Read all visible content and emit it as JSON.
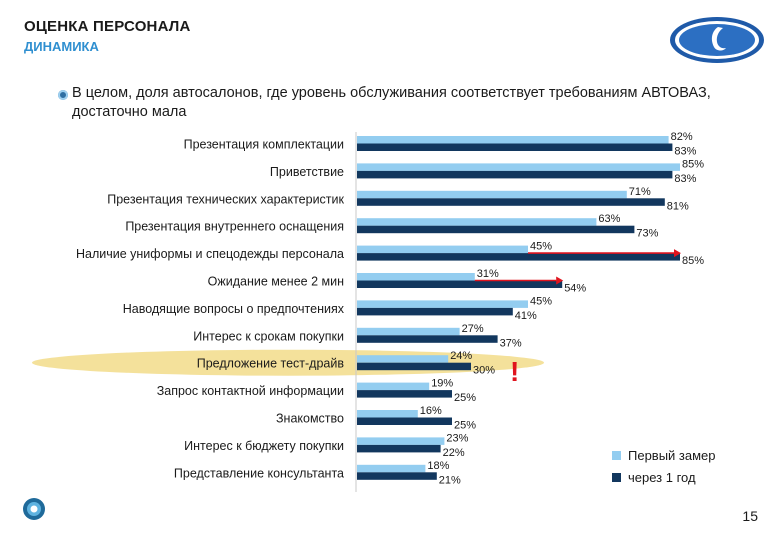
{
  "header": {
    "title": "ОЦЕНКА ПЕРСОНАЛА",
    "subtitle": "ДИНАМИКА"
  },
  "intro_text": "В целом, доля автосалонов, где уровень обслуживания соответствует требованиям АВТОВАЗ, достаточно мала",
  "page_number": "15",
  "colors": {
    "series1": "#93cdf0",
    "series2": "#12375e",
    "highlight": "#f2dc8a",
    "arrow": "#e0141e",
    "subtitle": "#2f8fd0"
  },
  "chart_data": {
    "type": "bar",
    "orientation": "horizontal",
    "title": "",
    "xlabel": "",
    "ylabel": "",
    "xlim": [
      0,
      100
    ],
    "categories": [
      "Презентация комплектации",
      "Приветствие",
      "Презентация технических характеристик",
      "Презентация внутреннего оснащения",
      "Наличие униформы и спецодежды персонала",
      "Ожидание  менее 2 мин",
      "Наводящие вопросы о предпочтениях",
      "Интерес к срокам покупки",
      "Предложение тест-драйв",
      "Запрос контактной информации",
      "Знакомство",
      "Интерес к бюджету покупки",
      "Представление консультанта"
    ],
    "series": [
      {
        "name": "Первый замер",
        "values": [
          82,
          85,
          71,
          63,
          45,
          31,
          45,
          27,
          24,
          19,
          16,
          23,
          18
        ]
      },
      {
        "name": "через 1 год",
        "values": [
          83,
          83,
          81,
          73,
          85,
          54,
          41,
          37,
          30,
          25,
          25,
          22,
          21
        ]
      }
    ],
    "labels": [
      [
        "82%",
        "83%"
      ],
      [
        "85%",
        "83%"
      ],
      [
        "71%",
        "81%"
      ],
      [
        "63%",
        "73%"
      ],
      [
        "45%",
        "85%"
      ],
      [
        "31%",
        "54%"
      ],
      [
        "45%",
        "41%"
      ],
      [
        "27%",
        "37%"
      ],
      [
        "24%",
        "30%"
      ],
      [
        "19%",
        "25%"
      ],
      [
        "16%",
        "25%"
      ],
      [
        "23%",
        "22%"
      ],
      [
        "18%",
        "21%"
      ]
    ],
    "highlighted_category": "Предложение тест-драйв",
    "arrow_categories": [
      "Наличие униформы и спецодежды персонала",
      "Ожидание  менее 2 мин"
    ],
    "exclamation": "!",
    "legend": [
      "Первый замер",
      "через 1 год"
    ],
    "legend_position": "bottom-right"
  }
}
